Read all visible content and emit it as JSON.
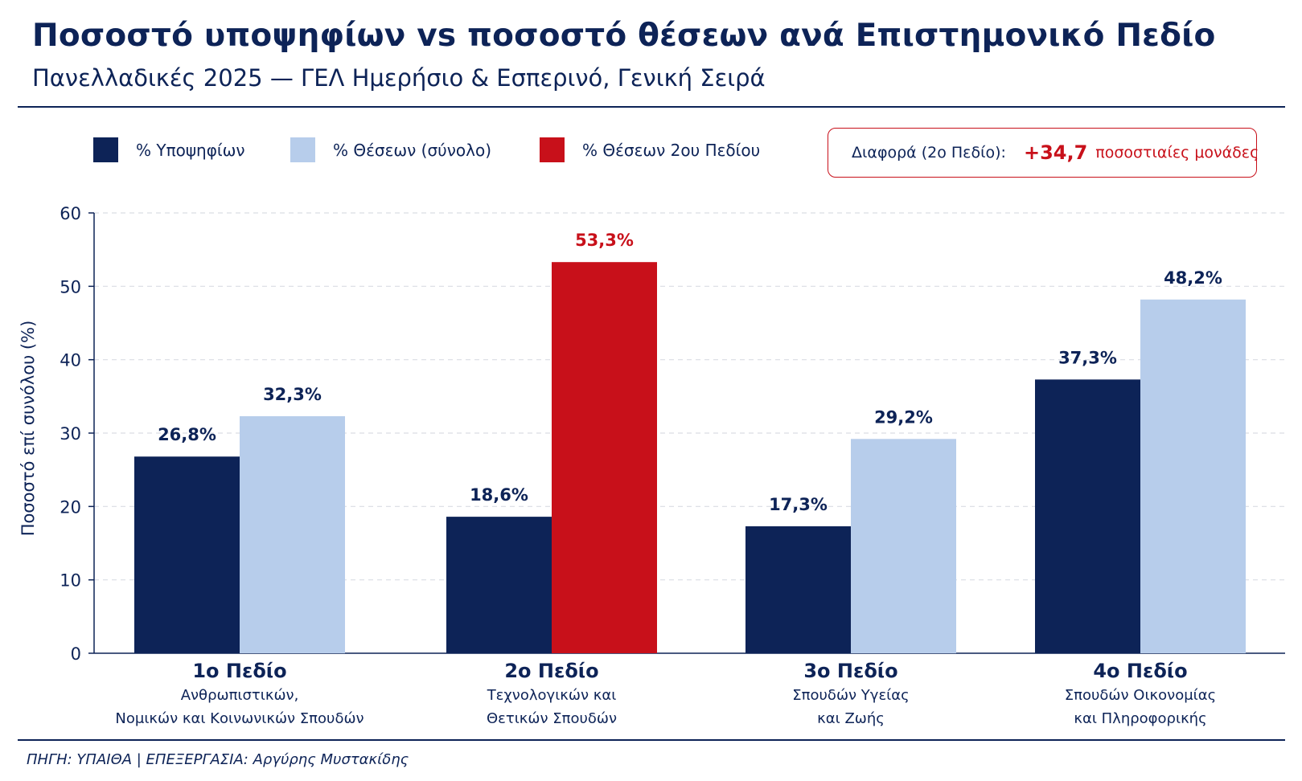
{
  "header": {
    "title": "Ποσοστό υποψηφίων vs ποσοστό θέσεων ανά Επιστημονικό Πεδίο",
    "subtitle": "Πανελλαδικές 2025 — ΓΕΛ Ημερήσιο & Εσπερινό, Γενική Σειρά"
  },
  "legend": [
    {
      "label": "% Υποψηφίων",
      "color": "#0d2357"
    },
    {
      "label": "% Θέσεων (σύνολο)",
      "color": "#b7cdeb"
    },
    {
      "label": "% Θέσεων 2ου Πεδίου",
      "color": "#c8101a"
    }
  ],
  "callout": {
    "label": "Διαφορά (2ο Πεδίο):",
    "value": "+34,7",
    "unit": "ποσοστιαίες μονάδες"
  },
  "source": "ΠΗΓΗ: ΥΠΑΙΘΑ  |  ΕΠΕΞΕΡΓΑΣΙΑ: Αργύρης Μυστακίδης",
  "colors": {
    "candidates": "#0d2357",
    "positions": "#b7cdeb",
    "highlight": "#c8101a",
    "grid": "#d9dde4",
    "text": "#0d2357"
  },
  "chart_data": {
    "type": "bar",
    "title": "Ποσοστό υποψηφίων vs ποσοστό θέσεων ανά Επιστημονικό Πεδίο",
    "subtitle": "Πανελλαδικές 2025 — ΓΕΛ Ημερήσιο & Εσπερινό, Γενική Σειρά",
    "ylabel": "Ποσοστό επί συνόλου (%)",
    "xlabel": "",
    "ylim": [
      0,
      60
    ],
    "yticks": [
      0,
      10,
      20,
      30,
      40,
      50,
      60
    ],
    "grid": true,
    "legend_position": "top-left",
    "categories": [
      {
        "name": "1ο Πεδίο",
        "desc": [
          "Ανθρωπιστικών,",
          "Νομικών και Κοινωνικών Σπουδών"
        ]
      },
      {
        "name": "2ο Πεδίο",
        "desc": [
          "Τεχνολογικών και",
          "Θετικών Σπουδών"
        ]
      },
      {
        "name": "3ο Πεδίο",
        "desc": [
          "Σπουδών Υγείας",
          "και Ζωής"
        ]
      },
      {
        "name": "4ο Πεδίο",
        "desc": [
          "Σπουδών Οικονομίας",
          "και Πληροφορικής"
        ]
      }
    ],
    "series": [
      {
        "name": "% Υποψηφίων",
        "values": [
          26.8,
          18.6,
          17.3,
          37.3
        ],
        "labels": [
          "26,8%",
          "18,6%",
          "17,3%",
          "37,3%"
        ]
      },
      {
        "name": "% Θέσεων (σύνολο)",
        "values": [
          32.3,
          53.3,
          29.2,
          48.2
        ],
        "labels": [
          "32,3%",
          "53,3%",
          "29,2%",
          "48,2%"
        ],
        "highlight_index": 1
      }
    ]
  }
}
